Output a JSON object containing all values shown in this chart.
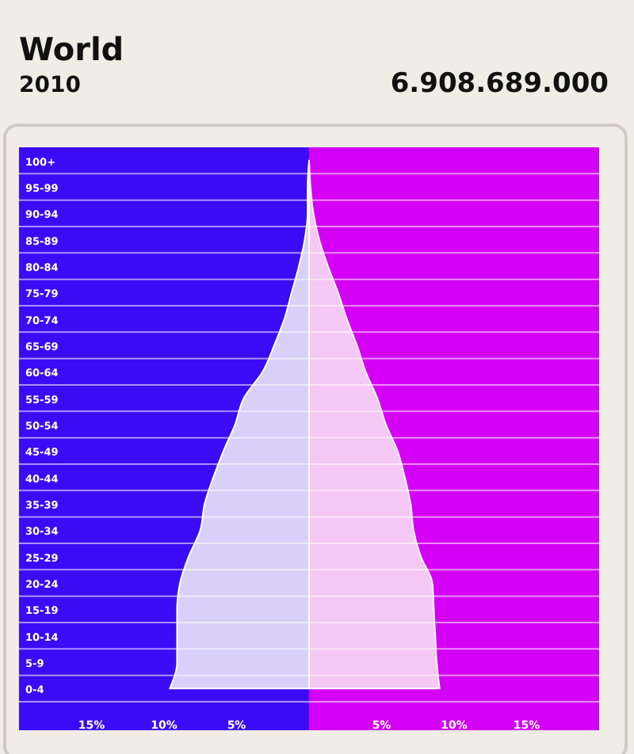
{
  "chart_data": {
    "type": "area",
    "orientation": "horizontal",
    "title": "World",
    "subtitle": "2010",
    "annotations": [
      "6.908.689.000"
    ],
    "categories": [
      "100+",
      "95-99",
      "90-94",
      "85-89",
      "80-84",
      "75-79",
      "70-74",
      "65-69",
      "60-64",
      "55-59",
      "50-54",
      "45-49",
      "40-44",
      "35-39",
      "30-34",
      "25-29",
      "20-24",
      "15-19",
      "10-14",
      "5-9",
      "0-4"
    ],
    "series": [
      {
        "color": "#d8d0f8",
        "values": [
          0,
          -0.1,
          -0.1,
          -0.3,
          -0.7,
          -1.2,
          -1.7,
          -2.4,
          -3.2,
          -4.5,
          -5.1,
          -5.9,
          -6.6,
          -7.2,
          -7.5,
          -8.3,
          -8.9,
          -9.1,
          -9.1,
          -9.1,
          -9.6
        ]
      },
      {
        "color": "#f5c8f5",
        "values": [
          0,
          0.1,
          0.3,
          0.7,
          1.3,
          2.0,
          2.6,
          3.3,
          3.9,
          4.7,
          5.3,
          6.1,
          6.6,
          7.0,
          7.2,
          7.7,
          8.5,
          8.6,
          8.7,
          8.8,
          9.0
        ]
      }
    ],
    "xlim": [
      -20,
      20
    ],
    "xticks": [
      {
        "value": -15,
        "label": "15%"
      },
      {
        "value": -10,
        "label": "10%"
      },
      {
        "value": -5,
        "label": "5%"
      },
      {
        "value": 5,
        "label": "5%"
      },
      {
        "value": 10,
        "label": "10%"
      },
      {
        "value": 15,
        "label": "15%"
      }
    ],
    "bands": [
      {
        "axis": "x",
        "from": -20,
        "to": 0,
        "color": "#3a0cf5"
      },
      {
        "axis": "x",
        "from": 0,
        "to": 20,
        "color": "#d400f5"
      }
    ],
    "grid": true
  }
}
